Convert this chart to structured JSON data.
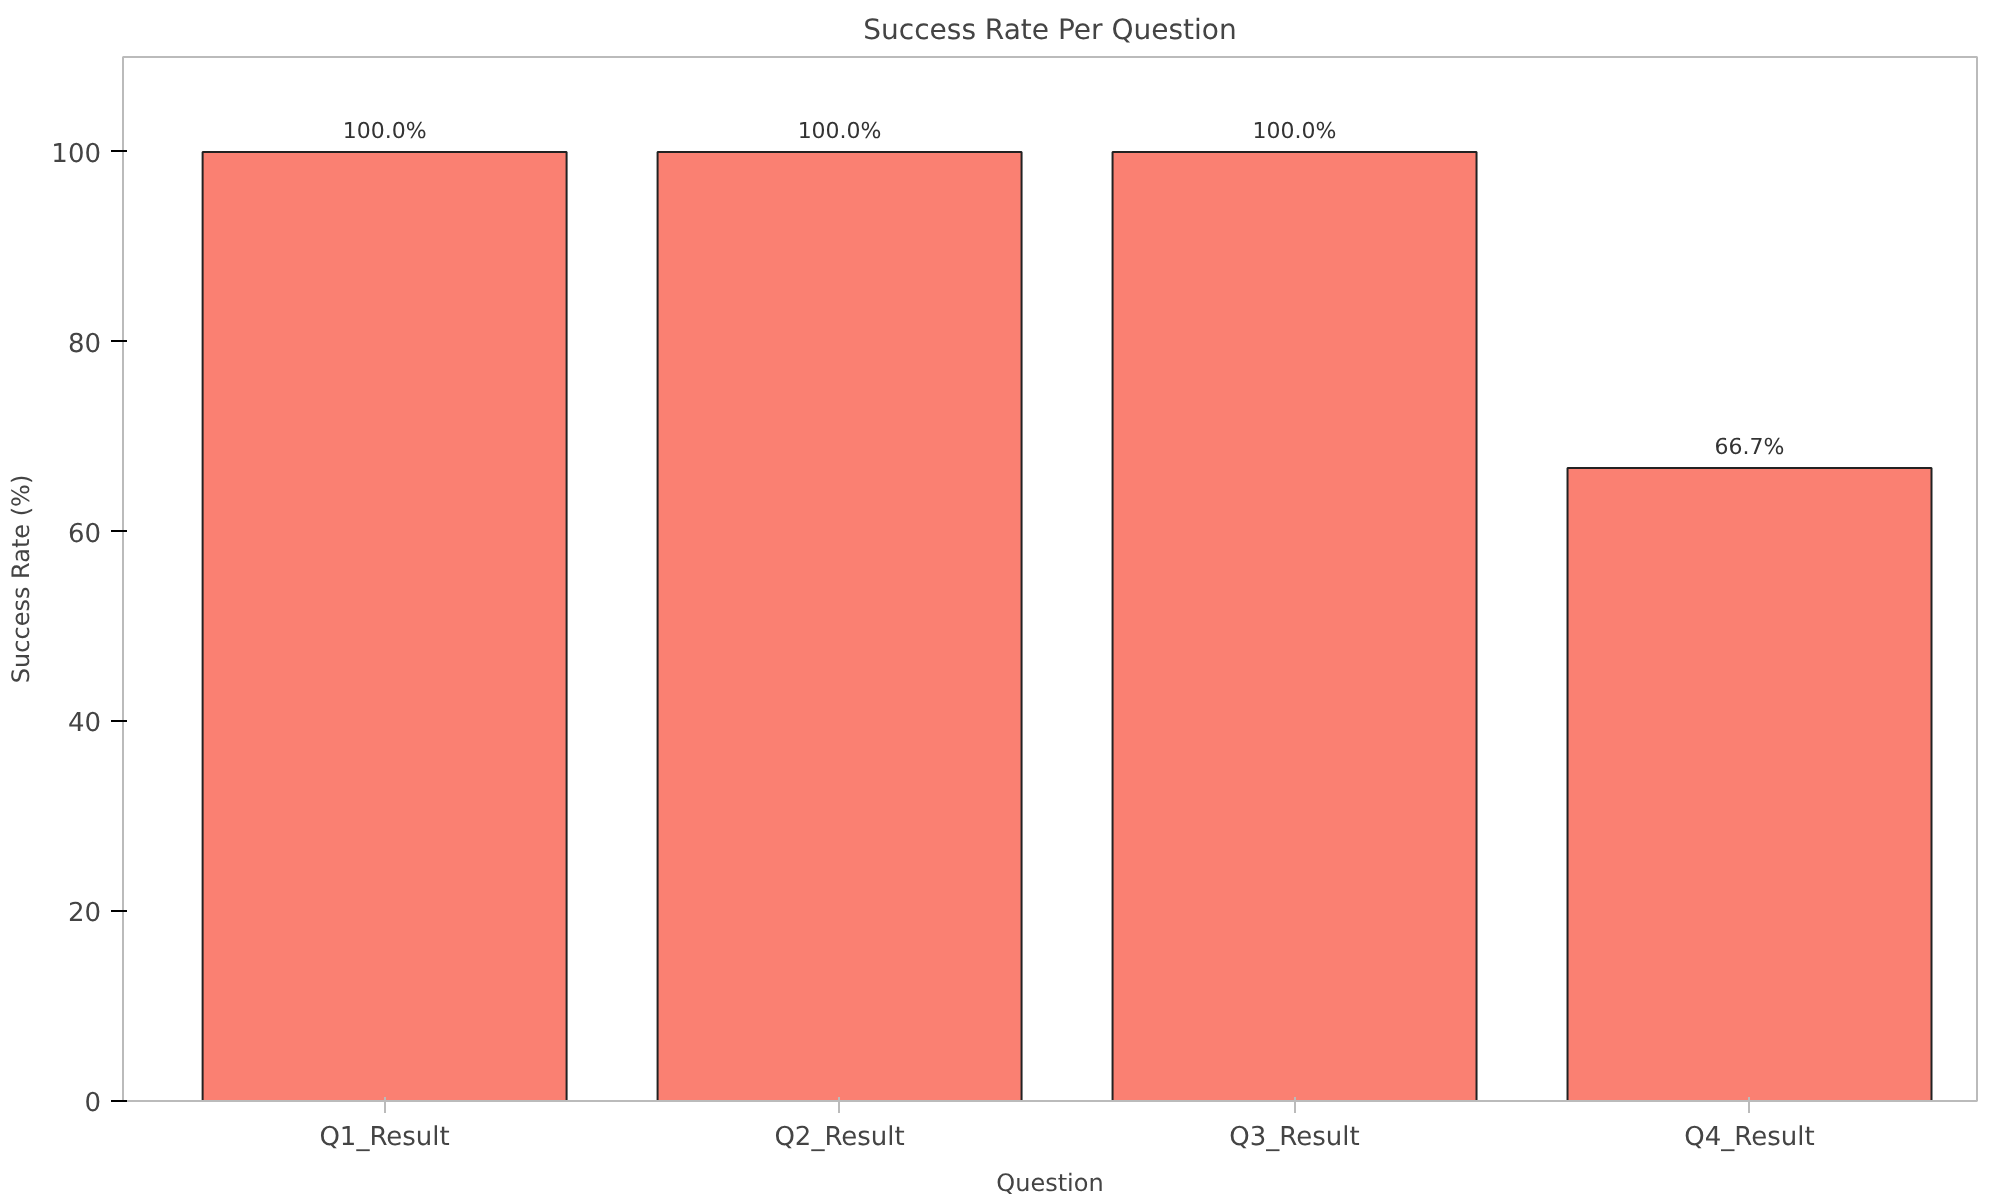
{
  "chart_data": {
    "type": "bar",
    "title": "Success Rate Per Question",
    "xlabel": "Question",
    "ylabel": "Success Rate (%)",
    "categories": [
      "Q1_Result",
      "Q2_Result",
      "Q3_Result",
      "Q4_Result"
    ],
    "values": [
      100,
      100,
      100,
      66.7
    ],
    "value_labels": [
      "100.0%",
      "100.0%",
      "100.0%",
      "66.7%"
    ],
    "color": "#fa8072",
    "ylim": [
      0,
      110
    ],
    "yticks": [
      0,
      20,
      40,
      60,
      80,
      100
    ],
    "grid": false
  }
}
